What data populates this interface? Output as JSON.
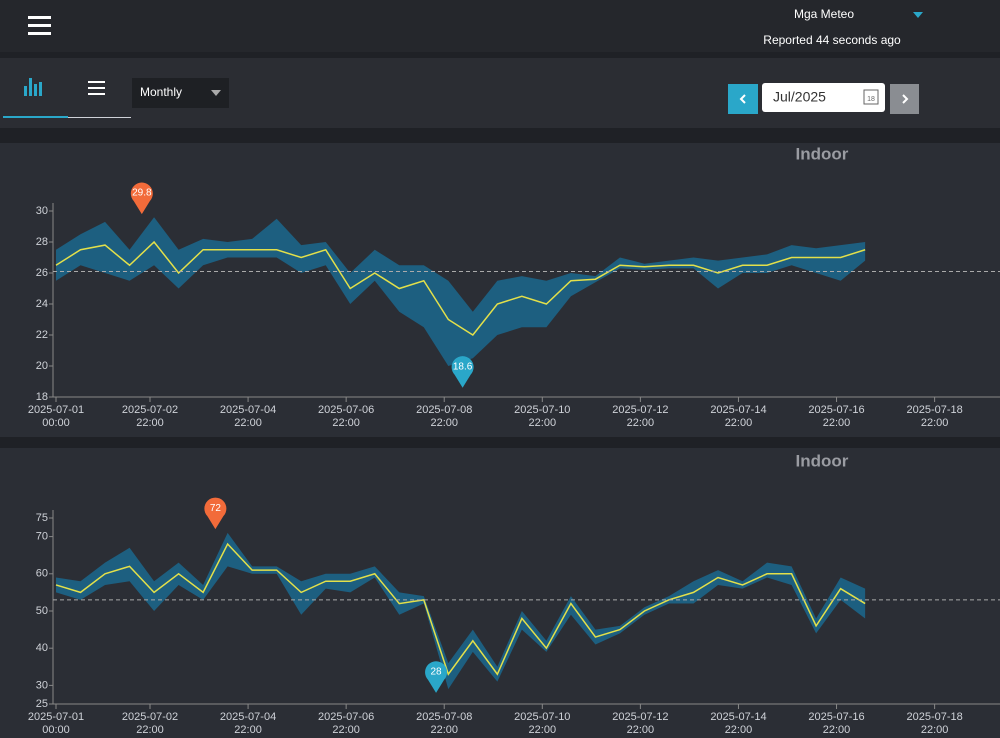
{
  "header": {
    "station": "Mga Meteo",
    "status": "Reported 44 seconds ago"
  },
  "toolbar": {
    "period": "Monthly",
    "date": "Jul/2025",
    "calendar_day": "18"
  },
  "chart_data": [
    {
      "type": "line",
      "title": "Indoor",
      "color": "#e3e04a",
      "band_color": "#1d5f80",
      "x": [
        "2025-07-01 00:00",
        "2025-07-01 12:00",
        "2025-07-02 00:00",
        "2025-07-02 12:00",
        "2025-07-03 00:00",
        "2025-07-03 12:00",
        "2025-07-04 00:00",
        "2025-07-04 12:00",
        "2025-07-05 00:00",
        "2025-07-05 12:00",
        "2025-07-06 00:00",
        "2025-07-06 12:00",
        "2025-07-07 00:00",
        "2025-07-07 12:00",
        "2025-07-08 00:00",
        "2025-07-08 12:00",
        "2025-07-09 00:00",
        "2025-07-09 12:00",
        "2025-07-10 00:00",
        "2025-07-10 12:00",
        "2025-07-11 00:00",
        "2025-07-11 12:00",
        "2025-07-12 00:00",
        "2025-07-12 12:00",
        "2025-07-13 00:00",
        "2025-07-13 12:00",
        "2025-07-14 00:00",
        "2025-07-14 12:00",
        "2025-07-15 00:00",
        "2025-07-15 12:00",
        "2025-07-16 00:00",
        "2025-07-16 12:00",
        "2025-07-17 00:00",
        "2025-07-17 12:00"
      ],
      "values": [
        26.5,
        27.5,
        27.8,
        26.5,
        28,
        26,
        27.5,
        27.5,
        27.5,
        27.5,
        27,
        27.5,
        25,
        26,
        25,
        25.5,
        23,
        22,
        24,
        24.5,
        24,
        25.5,
        25.6,
        26.5,
        26.4,
        26.5,
        26.5,
        26,
        26.5,
        26.5,
        27,
        27,
        27,
        27.5
      ],
      "min": [
        25.5,
        26.5,
        26,
        25.5,
        26.5,
        25,
        26.5,
        27,
        27,
        27,
        26,
        26.5,
        24,
        25.5,
        23.5,
        22.5,
        20,
        20.5,
        22,
        22.5,
        22.5,
        24.5,
        25.4,
        26.3,
        26.2,
        26.3,
        26.3,
        25,
        26,
        26,
        26.5,
        26,
        25.5,
        26.8
      ],
      "max": [
        27.5,
        28.5,
        29.3,
        27.5,
        29.6,
        27.5,
        28.2,
        28,
        28.2,
        29.5,
        27.8,
        28,
        26,
        27.5,
        26.5,
        26.5,
        25.5,
        23.5,
        25.5,
        25.8,
        25.5,
        26,
        25.8,
        27,
        26.6,
        26.8,
        27,
        26.8,
        27,
        27.2,
        27.8,
        27.6,
        27.8,
        28
      ],
      "average": 26.1,
      "xlim": [
        "2025-07-01 00:00",
        "2025-07-20 06:00"
      ],
      "xticks": [
        {
          "value": "2025-07-01 00:00",
          "label": "2025-07-01 00:00"
        },
        {
          "value": "2025-07-02 22:00",
          "label": "2025-07-02 22:00"
        },
        {
          "value": "2025-07-04 22:00",
          "label": "2025-07-04 22:00"
        },
        {
          "value": "2025-07-06 22:00",
          "label": "2025-07-06 22:00"
        },
        {
          "value": "2025-07-08 22:00",
          "label": "2025-07-08 22:00"
        },
        {
          "value": "2025-07-10 22:00",
          "label": "2025-07-10 22:00"
        },
        {
          "value": "2025-07-12 22:00",
          "label": "2025-07-12 22:00"
        },
        {
          "value": "2025-07-14 22:00",
          "label": "2025-07-14 22:00"
        },
        {
          "value": "2025-07-16 22:00",
          "label": "2025-07-16 22:00"
        },
        {
          "value": "2025-07-18 22:00",
          "label": "2025-07-18 22:00"
        }
      ],
      "ylim": [
        18,
        30
      ],
      "yticks": [
        18,
        20,
        22,
        24,
        26,
        28,
        30
      ],
      "annotations": [
        {
          "x": "2025-07-02 18:00",
          "value": 29.8,
          "color": "#f26b3a"
        },
        {
          "x": "2025-07-09 07:00",
          "value": 18.6,
          "color": "#2aa7c9"
        }
      ]
    },
    {
      "type": "line",
      "title": "Indoor",
      "color": "#e3e04a",
      "band_color": "#1d5f80",
      "x": [
        "2025-07-01 00:00",
        "2025-07-01 12:00",
        "2025-07-02 00:00",
        "2025-07-02 12:00",
        "2025-07-03 00:00",
        "2025-07-03 12:00",
        "2025-07-04 00:00",
        "2025-07-04 12:00",
        "2025-07-05 00:00",
        "2025-07-05 12:00",
        "2025-07-06 00:00",
        "2025-07-06 12:00",
        "2025-07-07 00:00",
        "2025-07-07 12:00",
        "2025-07-08 00:00",
        "2025-07-08 12:00",
        "2025-07-09 00:00",
        "2025-07-09 12:00",
        "2025-07-10 00:00",
        "2025-07-10 12:00",
        "2025-07-11 00:00",
        "2025-07-11 12:00",
        "2025-07-12 00:00",
        "2025-07-12 12:00",
        "2025-07-13 00:00",
        "2025-07-13 12:00",
        "2025-07-14 00:00",
        "2025-07-14 12:00",
        "2025-07-15 00:00",
        "2025-07-15 12:00",
        "2025-07-16 00:00",
        "2025-07-16 12:00",
        "2025-07-17 00:00",
        "2025-07-17 12:00"
      ],
      "values": [
        57,
        55,
        60,
        62,
        55,
        60,
        55,
        68,
        61,
        61,
        55,
        58,
        58,
        60,
        52,
        53,
        33,
        42,
        33,
        48,
        40,
        52,
        43,
        45,
        50,
        53,
        55,
        59,
        57,
        60,
        60,
        46,
        56,
        52
      ],
      "min": [
        55,
        53,
        57,
        58,
        50,
        57,
        53,
        62,
        60,
        60,
        49,
        56,
        55,
        59,
        49,
        52,
        29,
        39,
        31,
        45,
        39,
        49,
        41,
        44,
        49,
        52,
        52,
        57,
        56,
        59,
        57,
        44,
        53,
        48
      ],
      "max": [
        59,
        58,
        63,
        67,
        58,
        63,
        57,
        71,
        62,
        62,
        58,
        60,
        60,
        62,
        55,
        54,
        36,
        45,
        35,
        50,
        42,
        54,
        45,
        46,
        51,
        54,
        58,
        61,
        58,
        63,
        62,
        48,
        59,
        56
      ],
      "average": 53,
      "xlim": [
        "2025-07-01 00:00",
        "2025-07-20 06:00"
      ],
      "xticks": [
        {
          "value": "2025-07-01 00:00",
          "label": "2025-07-01 00:00"
        },
        {
          "value": "2025-07-02 22:00",
          "label": "2025-07-02 22:00"
        },
        {
          "value": "2025-07-04 22:00",
          "label": "2025-07-04 22:00"
        },
        {
          "value": "2025-07-06 22:00",
          "label": "2025-07-06 22:00"
        },
        {
          "value": "2025-07-08 22:00",
          "label": "2025-07-08 22:00"
        },
        {
          "value": "2025-07-10 22:00",
          "label": "2025-07-10 22:00"
        },
        {
          "value": "2025-07-12 22:00",
          "label": "2025-07-12 22:00"
        },
        {
          "value": "2025-07-14 22:00",
          "label": "2025-07-14 22:00"
        },
        {
          "value": "2025-07-16 22:00",
          "label": "2025-07-16 22:00"
        },
        {
          "value": "2025-07-18 22:00",
          "label": "2025-07-18 22:00"
        }
      ],
      "ylim": [
        25,
        75
      ],
      "yticks": [
        25,
        30,
        40,
        50,
        60,
        70,
        75
      ],
      "annotations": [
        {
          "x": "2025-07-04 06:00",
          "value": 72,
          "color": "#f26b3a"
        },
        {
          "x": "2025-07-08 18:00",
          "value": 28,
          "color": "#2aa7c9"
        }
      ]
    }
  ]
}
